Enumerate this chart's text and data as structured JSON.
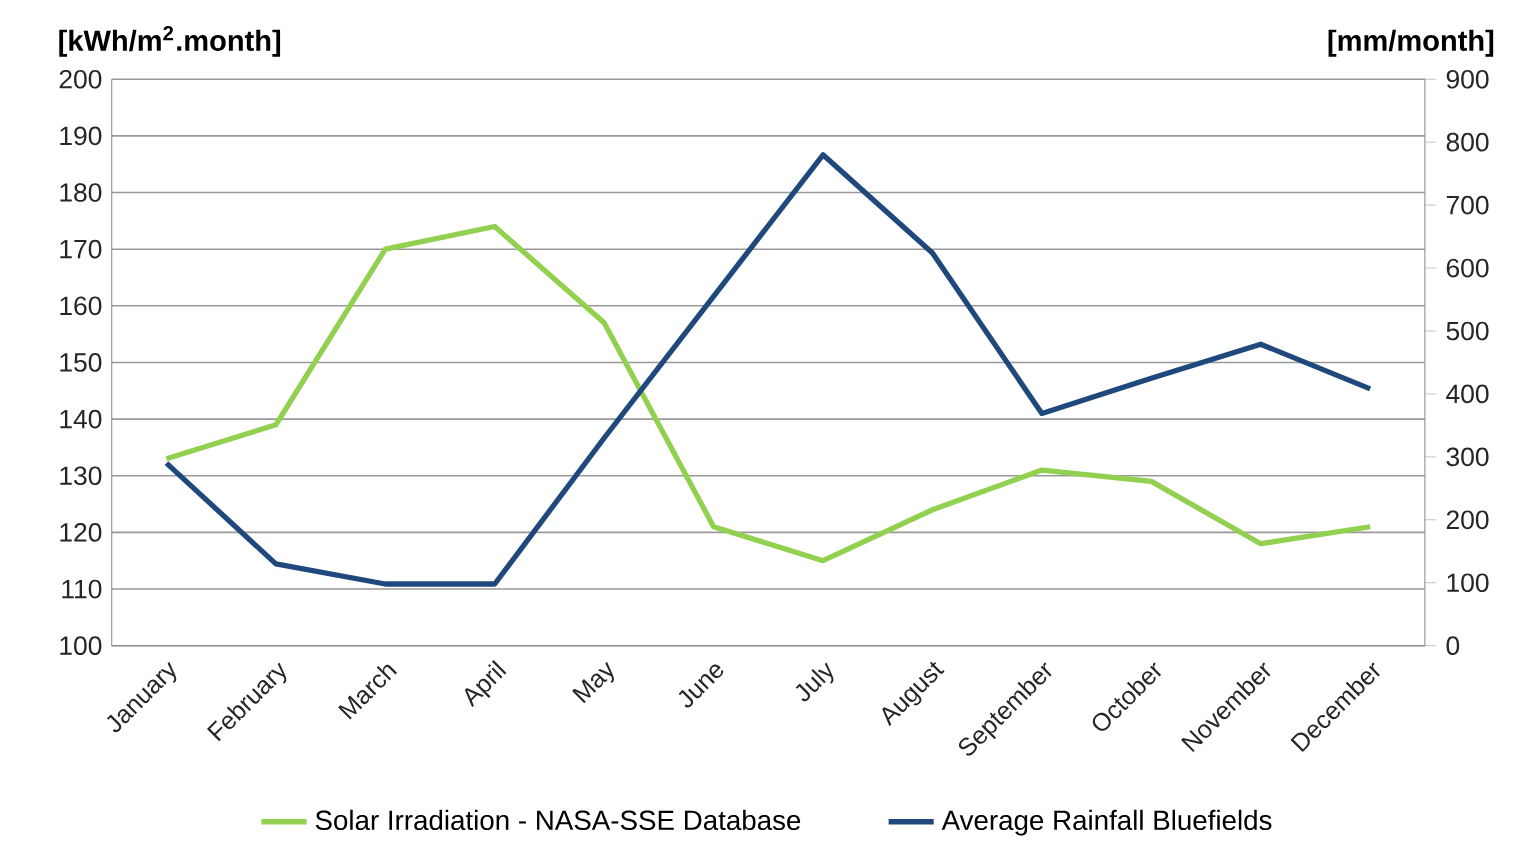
{
  "chart_data": {
    "type": "line",
    "ylabel": "[kWh/m$^{2}$.month]",
    "y2label": "[mm/month]",
    "categories": [
      "January",
      "February",
      "March",
      "April",
      "May",
      "June",
      "July",
      "August",
      "September",
      "October",
      "November",
      "December"
    ],
    "series": [
      {
        "name": "Solar Irradiation - NASA-SSE Database",
        "color": "#92d050",
        "values": [
          133,
          139,
          170,
          174,
          157,
          121,
          115,
          124,
          131,
          129,
          118,
          121
        ]
      },
      {
        "name": "Average Rainfall Bluefields",
        "color": "#1f497d",
        "axis": "y2",
        "values": [
          290,
          130,
          98,
          98,
          330,
          555,
          780,
          624,
          369,
          425,
          479,
          408
        ]
      }
    ],
    "ylim": [
      100,
      200
    ],
    "yticks": [
      100,
      110,
      120,
      130,
      140,
      150,
      160,
      170,
      180,
      190,
      200
    ],
    "y2lim": [
      0,
      900
    ],
    "y2ticks": [
      0,
      100,
      200,
      300,
      400,
      500,
      600,
      700,
      800,
      900
    ],
    "grid": "y",
    "legend": "bottom"
  }
}
